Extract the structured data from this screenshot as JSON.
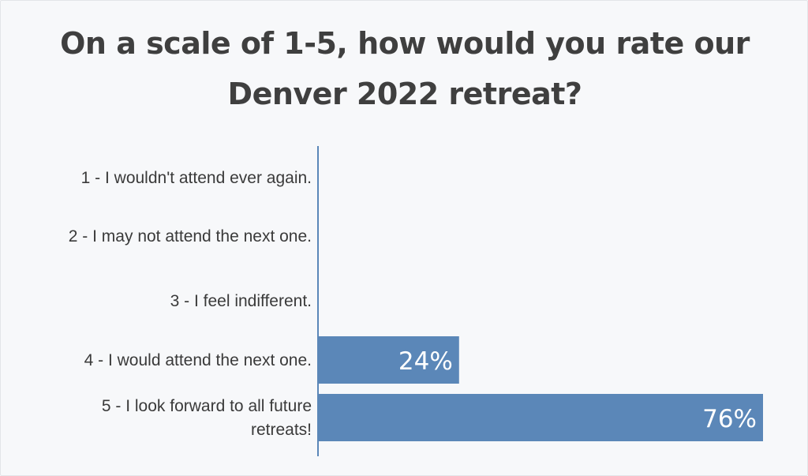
{
  "chart_data": {
    "type": "bar",
    "orientation": "horizontal",
    "title": "On a scale of 1-5, how would you rate our Denver 2022 retreat?",
    "categories": [
      "1 - I wouldn't attend ever again.",
      "2 - I may not attend the next one.",
      "3 - I feel indifferent.",
      "4 - I would attend the next one.",
      "5 - I look forward to all future retreats!"
    ],
    "values": [
      0,
      0,
      0,
      24,
      76
    ],
    "value_labels": [
      "",
      "",
      "",
      "24%",
      "76%"
    ],
    "xlim": [
      0,
      76
    ],
    "grid": false,
    "legend": "none",
    "bar_color": "#5b87b8",
    "axis_color": "#5b87b8"
  }
}
